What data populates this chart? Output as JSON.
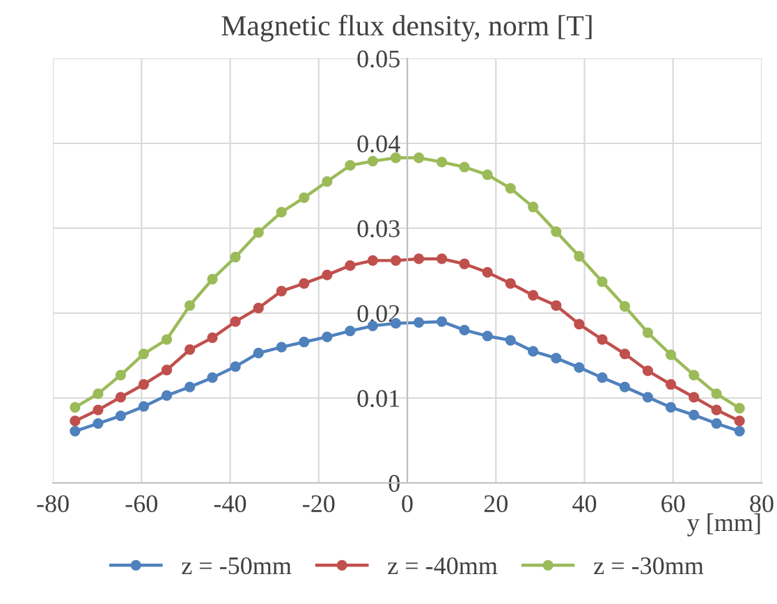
{
  "chart_data": {
    "type": "line",
    "title": "Magnetic flux density, norm [T]",
    "xlabel": "y [mm]",
    "x": [
      -75,
      -69.8,
      -64.7,
      -59.5,
      -54.3,
      -49.1,
      -44.0,
      -38.8,
      -33.6,
      -28.4,
      -23.3,
      -18.1,
      -12.9,
      -7.8,
      -2.6,
      2.6,
      7.8,
      12.9,
      18.1,
      23.3,
      28.4,
      33.6,
      38.8,
      44.0,
      49.1,
      54.3,
      59.5,
      64.7,
      69.8,
      75
    ],
    "series": [
      {
        "name": "z = -50mm",
        "color": "#4f81bd",
        "values": [
          0.0061,
          0.007,
          0.0079,
          0.009,
          0.0103,
          0.0113,
          0.0124,
          0.0137,
          0.0153,
          0.016,
          0.0166,
          0.0172,
          0.0179,
          0.0185,
          0.0188,
          0.0189,
          0.019,
          0.018,
          0.0173,
          0.0168,
          0.0155,
          0.0147,
          0.0136,
          0.0124,
          0.0113,
          0.0101,
          0.0089,
          0.008,
          0.007,
          0.0061
        ]
      },
      {
        "name": "z = -40mm",
        "color": "#c0504d",
        "values": [
          0.0073,
          0.0086,
          0.0101,
          0.0116,
          0.0133,
          0.0157,
          0.0171,
          0.019,
          0.0206,
          0.0226,
          0.0235,
          0.0245,
          0.0256,
          0.0262,
          0.0262,
          0.0264,
          0.0264,
          0.0258,
          0.0248,
          0.0235,
          0.0221,
          0.0209,
          0.0187,
          0.0169,
          0.0152,
          0.0132,
          0.0116,
          0.0101,
          0.0086,
          0.0073
        ]
      },
      {
        "name": "z = -30mm",
        "color": "#9bbb59",
        "values": [
          0.0089,
          0.0105,
          0.0127,
          0.0152,
          0.0169,
          0.0209,
          0.024,
          0.0266,
          0.0295,
          0.0319,
          0.0336,
          0.0355,
          0.0374,
          0.0379,
          0.0383,
          0.0383,
          0.0378,
          0.0372,
          0.0363,
          0.0347,
          0.0325,
          0.0296,
          0.0267,
          0.0237,
          0.0208,
          0.0177,
          0.0151,
          0.0127,
          0.0105,
          0.0088
        ]
      }
    ],
    "xlim": [
      -80,
      80
    ],
    "xticks": [
      -80,
      -60,
      -40,
      -20,
      0,
      20,
      40,
      60,
      80
    ],
    "ylim": [
      0,
      0.05
    ],
    "yticks": [
      0,
      0.01,
      0.02,
      0.03,
      0.04,
      0.05
    ],
    "grid": true,
    "legend": "bottom",
    "marker": "circle",
    "line_style": "solid"
  }
}
